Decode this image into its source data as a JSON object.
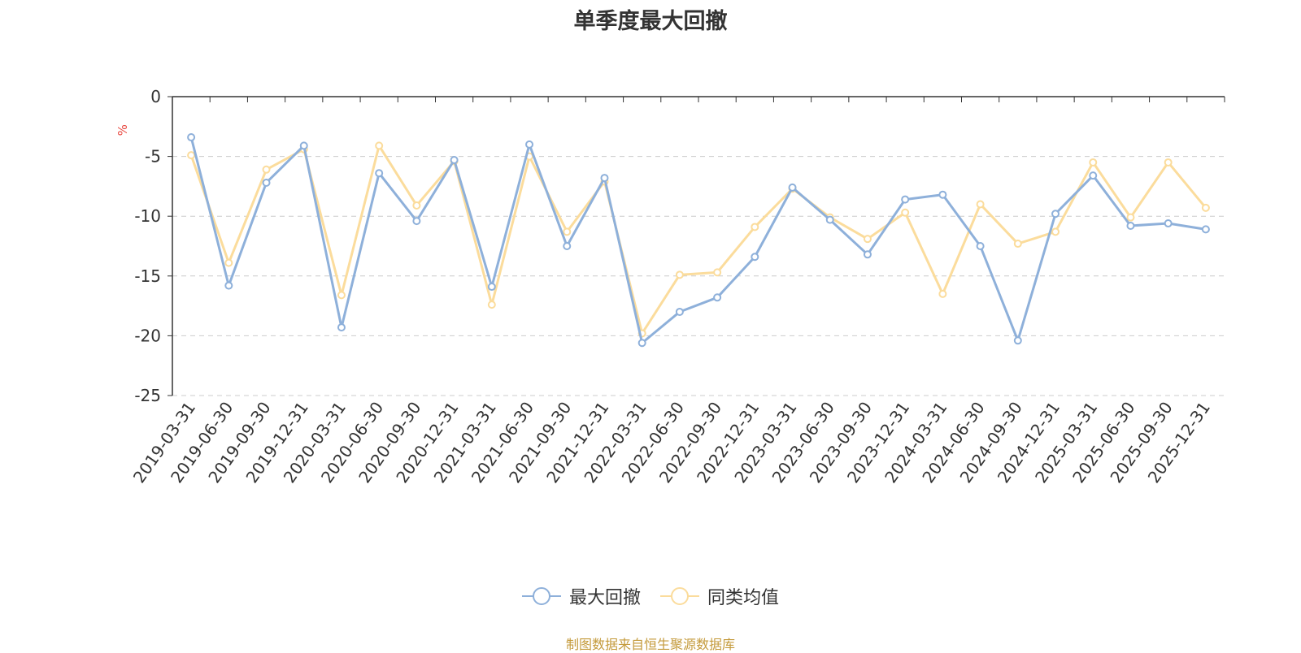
{
  "chart_data": {
    "type": "line",
    "title": "单季度最大回撤",
    "ylabel": "%",
    "ylim": [
      -25,
      0
    ],
    "yticks": [
      0,
      -5,
      -10,
      -15,
      -20,
      -25
    ],
    "grid": true,
    "legend_position": "bottom",
    "x": [
      "2019-03-31",
      "2019-06-30",
      "2019-09-30",
      "2019-12-31",
      "2020-03-31",
      "2020-06-30",
      "2020-09-30",
      "2020-12-31",
      "2021-03-31",
      "2021-06-30",
      "2021-09-30",
      "2021-12-31",
      "2022-03-31",
      "2022-06-30",
      "2022-09-30",
      "2022-12-31",
      "2023-03-31",
      "2023-06-30",
      "2023-09-30",
      "2023-12-31",
      "2024-03-31",
      "2024-06-30",
      "2024-09-30",
      "2024-12-31",
      "2025-03-31",
      "2025-06-30",
      "2025-09-30",
      "2025-12-31"
    ],
    "series": [
      {
        "name": "最大回撤",
        "color": "#8eb0da",
        "values": [
          -3.4,
          -15.8,
          -7.2,
          -4.1,
          -19.3,
          -6.4,
          -10.4,
          -5.3,
          -15.9,
          -4.0,
          -12.5,
          -6.8,
          -20.6,
          -18.0,
          -16.8,
          -13.4,
          -7.6,
          -10.3,
          -13.2,
          -8.6,
          -8.2,
          -12.5,
          -20.4,
          -9.8,
          -6.6,
          -10.8,
          -10.6,
          -11.1
        ]
      },
      {
        "name": "同类均值",
        "color": "#fbdc9c",
        "values": [
          -4.9,
          -13.9,
          -6.1,
          -4.4,
          -16.6,
          -4.1,
          -9.1,
          -5.4,
          -17.4,
          -5.0,
          -11.3,
          -7.1,
          -19.8,
          -14.9,
          -14.7,
          -10.9,
          -7.7,
          -10.1,
          -11.9,
          -9.7,
          -16.5,
          -9.0,
          -12.3,
          -11.3,
          -5.5,
          -10.1,
          -5.5,
          -9.3
        ]
      }
    ]
  },
  "legend": {
    "items": [
      {
        "label": "最大回撤",
        "color": "#8eb0da"
      },
      {
        "label": "同类均值",
        "color": "#fbdc9c"
      }
    ]
  },
  "footer": {
    "source_note": "制图数据来自恒生聚源数据库"
  },
  "colors": {
    "axis": "#333333",
    "grid": "#cccccc",
    "ylabel": "#e8463e",
    "source": "#c49a3b"
  }
}
